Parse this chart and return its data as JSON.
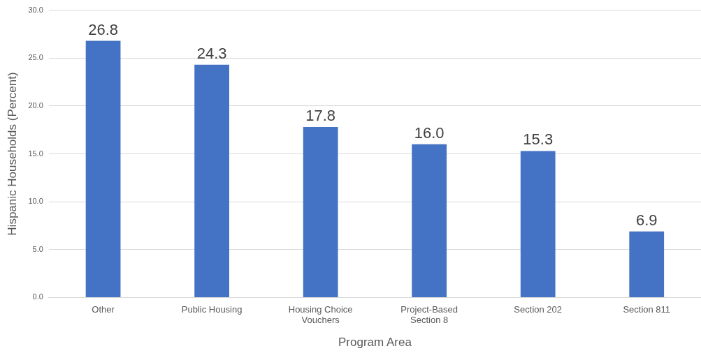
{
  "chart_data": {
    "type": "bar",
    "xlabel": "Program Area",
    "ylabel": "Hispanic Households (Percent)",
    "categories": [
      "Other",
      "Public Housing",
      "Housing Choice Vouchers",
      "Project-Based Section 8",
      "Section 202",
      "Section 811"
    ],
    "values": [
      26.8,
      24.3,
      17.8,
      16.0,
      15.3,
      6.9
    ],
    "color": "#4472c4",
    "value_labels": [
      "26.8",
      "24.3",
      "17.8",
      "16.0",
      "15.3",
      "6.9"
    ],
    "ylim": [
      0,
      30
    ],
    "yticks": [
      {
        "value": 0,
        "label": "0.0"
      },
      {
        "value": 5,
        "label": "5.0"
      },
      {
        "value": 10,
        "label": "10.0"
      },
      {
        "value": 15,
        "label": "15.0"
      },
      {
        "value": 20,
        "label": "20.0"
      },
      {
        "value": 25,
        "label": "25.0"
      },
      {
        "value": 30,
        "label": "30.0"
      }
    ],
    "grid": "y",
    "legend": false
  }
}
